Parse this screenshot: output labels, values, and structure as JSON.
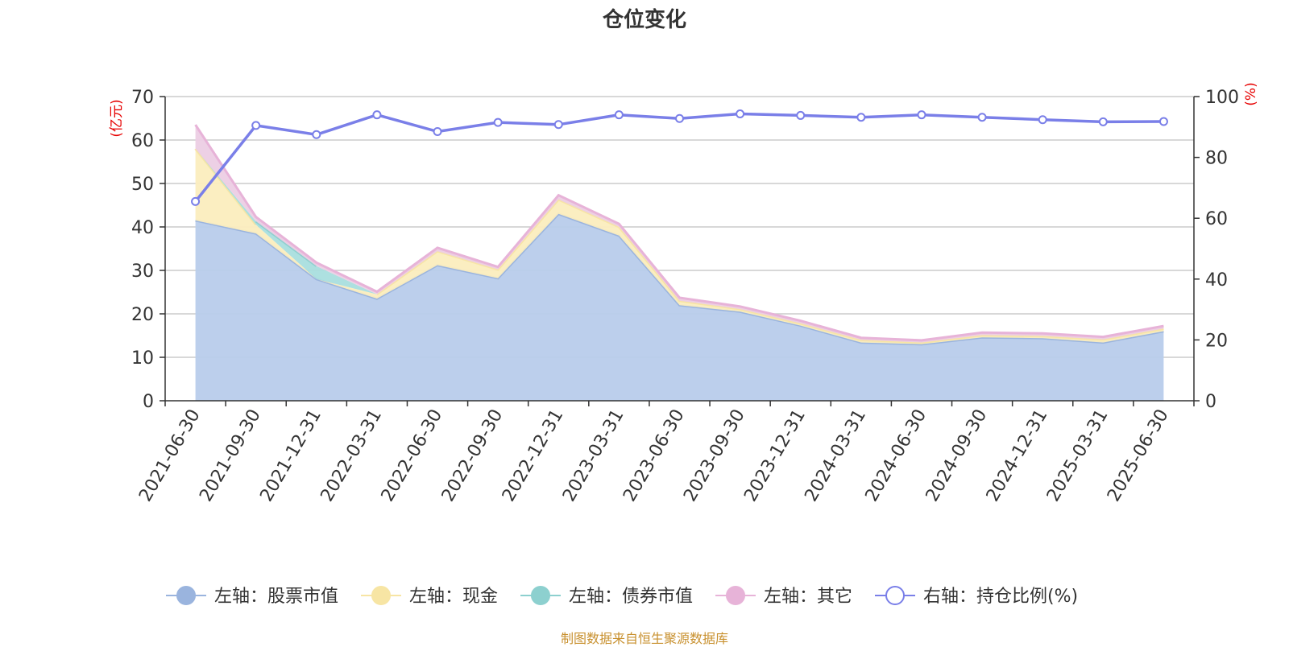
{
  "page": {
    "title": "仓位变化",
    "source": "制图数据来自恒生聚源数据库"
  },
  "chart_data": {
    "type": "area",
    "title": "仓位变化",
    "categories": [
      "2021-06-30",
      "2021-09-30",
      "2021-12-31",
      "2022-03-31",
      "2022-06-30",
      "2022-09-30",
      "2022-12-31",
      "2023-03-31",
      "2023-06-30",
      "2023-09-30",
      "2023-12-31",
      "2024-03-31",
      "2024-06-30",
      "2024-09-30",
      "2024-12-31",
      "2025-03-31",
      "2025-06-30"
    ],
    "left_axis": {
      "unit": "(亿元)",
      "ylim": [
        0,
        70
      ],
      "ticks": [
        "0",
        "10",
        "20",
        "30",
        "40",
        "50",
        "60",
        "70"
      ]
    },
    "right_axis": {
      "unit": "(%)",
      "ylim": [
        0,
        100
      ],
      "ticks": [
        "0",
        "20",
        "40",
        "60",
        "80",
        "100"
      ]
    },
    "grid": true,
    "legend_position": "bottom",
    "stacked_series": [
      {
        "name": "左轴：股票市值",
        "axis": "left",
        "color": "#9ab4de",
        "fill": "#b8cceb",
        "values": [
          41.5,
          38.5,
          28.0,
          23.5,
          31.2,
          28.2,
          43.0,
          38.0,
          22.0,
          20.5,
          17.3,
          13.4,
          13.0,
          14.6,
          14.4,
          13.4,
          16.0
        ]
      },
      {
        "name": "左轴：现金",
        "axis": "left",
        "color": "#f7e5a4",
        "fill": "#fbedbe",
        "values": [
          16.5,
          2.0,
          0.0,
          1.0,
          3.2,
          2.0,
          3.3,
          2.0,
          1.0,
          0.6,
          0.5,
          0.6,
          0.4,
          0.5,
          0.5,
          0.7,
          0.6
        ]
      },
      {
        "name": "左轴：债券市值",
        "axis": "left",
        "color": "#8dd0cf",
        "fill": "#a9dede",
        "values": [
          0.0,
          0.8,
          3.0,
          0.0,
          0.0,
          0.0,
          0.0,
          0.0,
          0.0,
          0.0,
          0.0,
          0.0,
          0.0,
          0.0,
          0.0,
          0.0,
          0.0
        ]
      },
      {
        "name": "左轴：其它",
        "axis": "left",
        "color": "#e7b3d8",
        "fill": "#eccde4",
        "values": [
          5.5,
          1.0,
          0.8,
          0.6,
          0.8,
          0.6,
          1.0,
          0.7,
          0.7,
          0.6,
          0.6,
          0.5,
          0.5,
          0.6,
          0.6,
          0.6,
          0.6
        ]
      }
    ],
    "line_series": {
      "name": "右轴：持仓比例(%)",
      "axis": "right",
      "color": "#7a7fe8",
      "values": [
        65.5,
        90.5,
        87.5,
        94.0,
        88.5,
        91.5,
        90.8,
        94.0,
        92.8,
        94.3,
        93.8,
        93.2,
        94.0,
        93.2,
        92.4,
        91.7,
        91.8
      ]
    }
  }
}
